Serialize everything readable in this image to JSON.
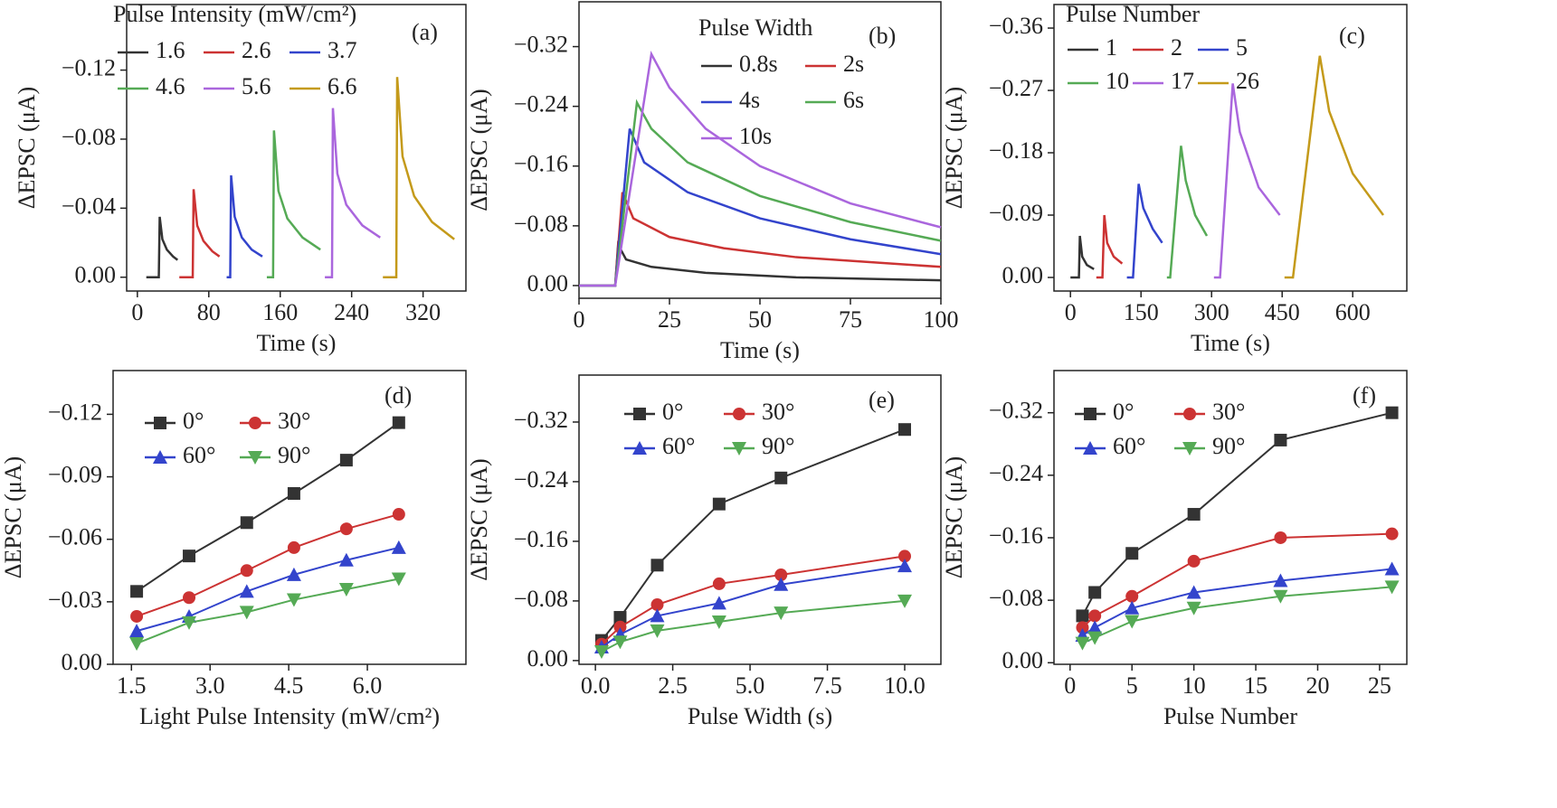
{
  "chart_data": [
    {
      "type": "line",
      "panel_label": "(a)",
      "legend_title": "Pulse Intensity (mW/cm²)",
      "xlabel": "Time (s)",
      "ylabel": "ΔEPSC (μA)",
      "xlim": [
        -12,
        368
      ],
      "ylim": [
        0.008,
        -0.158
      ],
      "xticks": [
        0,
        80,
        160,
        240,
        320
      ],
      "yticks": [
        {
          "value": 0,
          "label": "0.00"
        },
        {
          "value": -0.04,
          "label": "−0.04"
        },
        {
          "value": -0.08,
          "label": "−0.08"
        },
        {
          "value": -0.12,
          "label": "−0.12"
        }
      ],
      "series": [
        {
          "name": "1.6",
          "color": "#333333",
          "x": [
            10,
            24,
            25,
            28,
            33,
            40,
            45
          ],
          "values": [
            0,
            0,
            -0.035,
            -0.022,
            -0.016,
            -0.012,
            -0.01
          ]
        },
        {
          "name": "2.6",
          "color": "#cc3333",
          "x": [
            47,
            62,
            63,
            67,
            74,
            84,
            92
          ],
          "values": [
            0,
            0,
            -0.051,
            -0.03,
            -0.021,
            -0.015,
            -0.012
          ]
        },
        {
          "name": "3.7",
          "color": "#3344cc",
          "x": [
            100,
            104,
            105,
            109,
            117,
            128,
            140
          ],
          "values": [
            0,
            0,
            -0.059,
            -0.035,
            -0.023,
            -0.016,
            -0.012
          ]
        },
        {
          "name": "4.6",
          "color": "#55aa55",
          "x": [
            145,
            152,
            153,
            158,
            168,
            185,
            205
          ],
          "values": [
            0,
            0,
            -0.085,
            -0.05,
            -0.034,
            -0.023,
            -0.016
          ]
        },
        {
          "name": "5.6",
          "color": "#aa66dd",
          "x": [
            210,
            218,
            219,
            224,
            234,
            252,
            272
          ],
          "values": [
            0,
            0,
            -0.098,
            -0.06,
            -0.042,
            -0.03,
            -0.023
          ]
        },
        {
          "name": "6.6",
          "color": "#c49a1a",
          "x": [
            275,
            290,
            291,
            297,
            310,
            330,
            355
          ],
          "values": [
            0,
            0,
            -0.116,
            -0.07,
            -0.047,
            -0.032,
            -0.022
          ]
        }
      ]
    },
    {
      "type": "line",
      "panel_label": "(b)",
      "legend_title": "Pulse Width",
      "xlabel": "Time (s)",
      "ylabel": "ΔEPSC (μA)",
      "xlim": [
        0,
        100
      ],
      "ylim": [
        0.017,
        -0.38
      ],
      "xticks": [
        0,
        25,
        50,
        75,
        100
      ],
      "yticks": [
        {
          "value": 0,
          "label": "0.00"
        },
        {
          "value": -0.08,
          "label": "−0.08"
        },
        {
          "value": -0.16,
          "label": "−0.16"
        },
        {
          "value": -0.24,
          "label": "−0.24"
        },
        {
          "value": -0.32,
          "label": "−0.32"
        }
      ],
      "series": [
        {
          "name": "0.8s",
          "color": "#333333",
          "x": [
            0,
            10,
            10.8,
            13,
            20,
            35,
            60,
            100
          ],
          "values": [
            0,
            0,
            -0.055,
            -0.035,
            -0.025,
            -0.017,
            -0.011,
            -0.007
          ]
        },
        {
          "name": "2s",
          "color": "#cc3333",
          "x": [
            0,
            10,
            12,
            15,
            25,
            40,
            60,
            100
          ],
          "values": [
            0,
            0,
            -0.125,
            -0.09,
            -0.065,
            -0.05,
            -0.038,
            -0.025
          ]
        },
        {
          "name": "4s",
          "color": "#3344cc",
          "x": [
            0,
            10,
            14,
            18,
            30,
            50,
            75,
            100
          ],
          "values": [
            0,
            0,
            -0.21,
            -0.165,
            -0.125,
            -0.09,
            -0.062,
            -0.042
          ]
        },
        {
          "name": "6s",
          "color": "#55aa55",
          "x": [
            0,
            10,
            16,
            20,
            30,
            50,
            75,
            100
          ],
          "values": [
            0,
            0,
            -0.245,
            -0.21,
            -0.165,
            -0.12,
            -0.085,
            -0.06
          ]
        },
        {
          "name": "10s",
          "color": "#aa66dd",
          "x": [
            0,
            10,
            20,
            25,
            35,
            50,
            75,
            100
          ],
          "values": [
            0,
            0,
            -0.31,
            -0.265,
            -0.21,
            -0.16,
            -0.11,
            -0.078
          ]
        }
      ]
    },
    {
      "type": "line",
      "panel_label": "(c)",
      "legend_title": "Pulse Number",
      "xlabel": "Time (s)",
      "ylabel": "ΔEPSC (μA)",
      "xlim": [
        -35,
        715
      ],
      "ylim": [
        0.0196,
        -0.394
      ],
      "xticks": [
        0,
        150,
        300,
        450,
        600
      ],
      "yticks": [
        {
          "value": 0,
          "label": "0.00"
        },
        {
          "value": -0.09,
          "label": "−0.09"
        },
        {
          "value": -0.18,
          "label": "−0.18"
        },
        {
          "value": -0.27,
          "label": "−0.27"
        },
        {
          "value": -0.36,
          "label": "−0.36"
        }
      ],
      "series": [
        {
          "name": "1",
          "color": "#333333",
          "x": [
            0,
            18,
            20,
            25,
            35,
            50
          ],
          "values": [
            0,
            0,
            -0.06,
            -0.03,
            -0.018,
            -0.012
          ]
        },
        {
          "name": "2",
          "color": "#cc3333",
          "x": [
            55,
            68,
            72,
            78,
            92,
            110
          ],
          "values": [
            0,
            0,
            -0.09,
            -0.05,
            -0.03,
            -0.02
          ]
        },
        {
          "name": "5",
          "color": "#3344cc",
          "x": [
            120,
            133,
            145,
            155,
            175,
            195
          ],
          "values": [
            0,
            0,
            -0.135,
            -0.1,
            -0.07,
            -0.05
          ]
        },
        {
          "name": "10",
          "color": "#55aa55",
          "x": [
            205,
            212,
            235,
            245,
            265,
            290
          ],
          "values": [
            0,
            0,
            -0.19,
            -0.14,
            -0.09,
            -0.06
          ]
        },
        {
          "name": "17",
          "color": "#aa66dd",
          "x": [
            305,
            318,
            345,
            360,
            400,
            445
          ],
          "values": [
            0,
            0,
            -0.28,
            -0.21,
            -0.13,
            -0.09
          ]
        },
        {
          "name": "26",
          "color": "#c49a1a",
          "x": [
            455,
            473,
            530,
            550,
            600,
            665
          ],
          "values": [
            0,
            0,
            -0.32,
            -0.24,
            -0.15,
            -0.09
          ]
        }
      ]
    },
    {
      "type": "line-markers",
      "panel_label": "(d)",
      "xlabel": "Light Pulse Intensity (mW/cm²)",
      "ylabel": "ΔEPSC (μA)",
      "xlim": [
        1.15,
        7.88
      ],
      "ylim": [
        0,
        -0.141
      ],
      "xticks": [
        1.5,
        {
          "value": 3,
          "label": "3.0"
        },
        4.5,
        {
          "value": 6,
          "label": "6.0"
        }
      ],
      "yticks": [
        {
          "value": 0,
          "label": "0.00"
        },
        {
          "value": -0.03,
          "label": "−0.03"
        },
        {
          "value": -0.06,
          "label": "−0.06"
        },
        {
          "value": -0.09,
          "label": "−0.09"
        },
        {
          "value": -0.12,
          "label": "−0.12"
        }
      ],
      "x": [
        1.6,
        2.6,
        3.7,
        4.6,
        5.6,
        6.6
      ],
      "series": [
        {
          "name": "0°",
          "color": "#333333",
          "marker": "square",
          "values": [
            -0.035,
            -0.052,
            -0.068,
            -0.082,
            -0.098,
            -0.116
          ]
        },
        {
          "name": "30°",
          "color": "#cc3333",
          "marker": "circle",
          "values": [
            -0.023,
            -0.032,
            -0.045,
            -0.056,
            -0.065,
            -0.072
          ]
        },
        {
          "name": "60°",
          "color": "#3344cc",
          "marker": "triangle-up",
          "values": [
            -0.016,
            -0.023,
            -0.035,
            -0.043,
            -0.05,
            -0.056
          ]
        },
        {
          "name": "90°",
          "color": "#55aa55",
          "marker": "triangle-down",
          "values": [
            -0.01,
            -0.02,
            -0.025,
            -0.031,
            -0.036,
            -0.041
          ]
        }
      ]
    },
    {
      "type": "line-markers",
      "panel_label": "(e)",
      "xlabel": "Pulse Width (s)",
      "ylabel": "ΔEPSC (μA)",
      "xlim": [
        -0.53,
        11.17
      ],
      "ylim": [
        0.005,
        -0.383
      ],
      "xticks": [
        {
          "value": 0,
          "label": "0.0"
        },
        2.5,
        {
          "value": 5,
          "label": "5.0"
        },
        7.5,
        {
          "value": 10,
          "label": "10.0"
        }
      ],
      "yticks": [
        {
          "value": 0,
          "label": "0.00"
        },
        {
          "value": -0.08,
          "label": "−0.08"
        },
        {
          "value": -0.16,
          "label": "−0.16"
        },
        {
          "value": -0.24,
          "label": "−0.24"
        },
        {
          "value": -0.32,
          "label": "−0.32"
        }
      ],
      "x": [
        0.2,
        0.8,
        2,
        4,
        6,
        10
      ],
      "series": [
        {
          "name": "0°",
          "color": "#333333",
          "marker": "square",
          "values": [
            -0.027,
            -0.058,
            -0.128,
            -0.21,
            -0.245,
            -0.31
          ]
        },
        {
          "name": "30°",
          "color": "#cc3333",
          "marker": "circle",
          "values": [
            -0.022,
            -0.045,
            -0.075,
            -0.103,
            -0.115,
            -0.14
          ]
        },
        {
          "name": "60°",
          "color": "#3344cc",
          "marker": "triangle-up",
          "values": [
            -0.018,
            -0.035,
            -0.06,
            -0.077,
            -0.102,
            -0.127
          ]
        },
        {
          "name": "90°",
          "color": "#55aa55",
          "marker": "triangle-down",
          "values": [
            -0.012,
            -0.025,
            -0.04,
            -0.052,
            -0.064,
            -0.08
          ]
        }
      ]
    },
    {
      "type": "line-markers",
      "panel_label": "(f)",
      "xlabel": "Pulse Number",
      "ylabel": "ΔEPSC (μA)",
      "xlim": [
        -1.3,
        27.2
      ],
      "ylim": [
        0.002,
        -0.374
      ],
      "xticks": [
        0,
        5,
        10,
        15,
        20,
        25
      ],
      "yticks": [
        {
          "value": 0,
          "label": "0.00"
        },
        {
          "value": -0.08,
          "label": "−0.08"
        },
        {
          "value": -0.16,
          "label": "−0.16"
        },
        {
          "value": -0.24,
          "label": "−0.24"
        },
        {
          "value": -0.32,
          "label": "−0.32"
        }
      ],
      "x": [
        1,
        2,
        5,
        10,
        17,
        26
      ],
      "series": [
        {
          "name": "0°",
          "color": "#333333",
          "marker": "square",
          "values": [
            -0.06,
            -0.09,
            -0.14,
            -0.19,
            -0.285,
            -0.32
          ]
        },
        {
          "name": "30°",
          "color": "#cc3333",
          "marker": "circle",
          "values": [
            -0.045,
            -0.06,
            -0.085,
            -0.13,
            -0.16,
            -0.165
          ]
        },
        {
          "name": "60°",
          "color": "#3344cc",
          "marker": "triangle-up",
          "values": [
            -0.035,
            -0.045,
            -0.07,
            -0.09,
            -0.105,
            -0.12
          ]
        },
        {
          "name": "90°",
          "color": "#55aa55",
          "marker": "triangle-down",
          "values": [
            -0.025,
            -0.032,
            -0.053,
            -0.07,
            -0.085,
            -0.097
          ]
        }
      ]
    }
  ]
}
